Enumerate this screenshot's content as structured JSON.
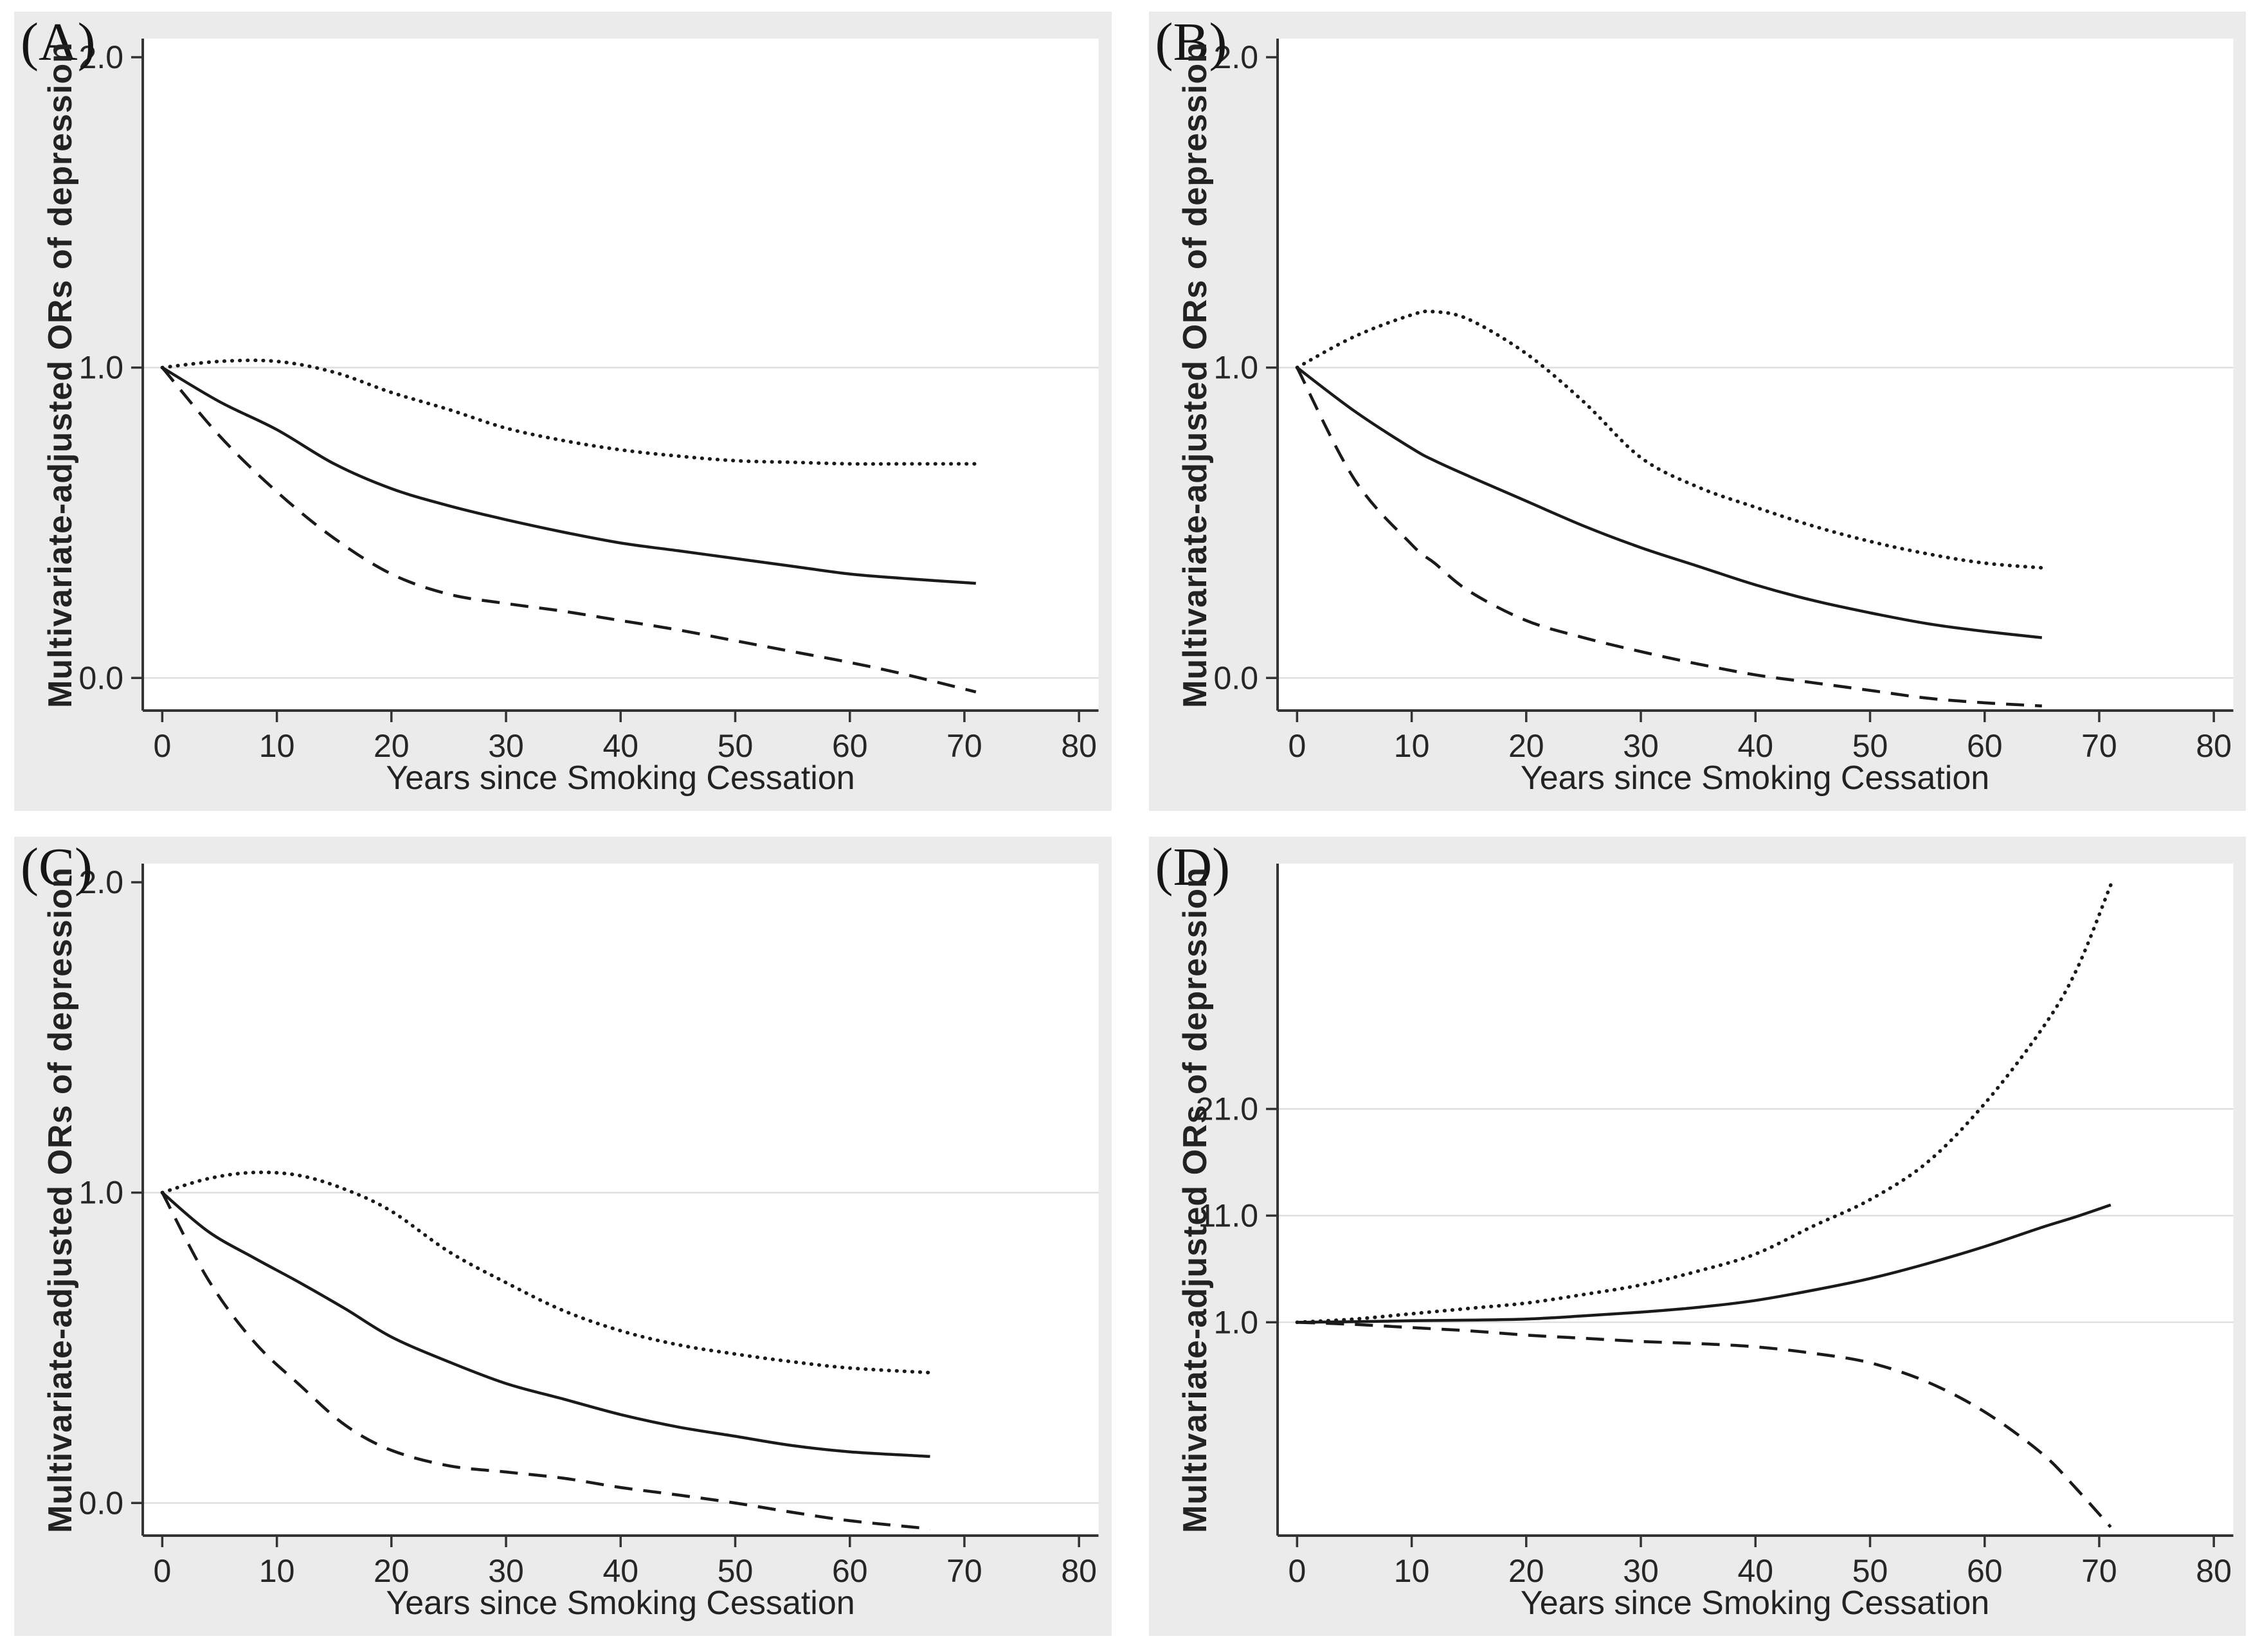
{
  "figure": {
    "xlabel": "Years since Smoking Cessation",
    "ylabel": "Multivariate-adjusted ORs of depression"
  },
  "colors": {
    "panel_background": "#ebebeb",
    "plot_background": "#ffffff",
    "gridline": "#dcdcdc",
    "axis": "#333333",
    "line": "#1a1a1a",
    "text": "#262626"
  },
  "chart_data": [
    {
      "id": "A",
      "label": "(A)",
      "type": "line",
      "xlim": [
        -1.7,
        81.7
      ],
      "ylim": [
        -0.105,
        2.06
      ],
      "xticks": [
        0,
        10,
        20,
        30,
        40,
        50,
        60,
        70,
        80
      ],
      "yticks": [
        {
          "value": 0.0,
          "label": "0.0"
        },
        {
          "value": 1.0,
          "label": "1.0"
        },
        {
          "value": 2.0,
          "label": "2.0"
        }
      ],
      "gridlines": [
        0.0,
        1.0
      ],
      "legend": "none",
      "series": [
        {
          "name": "upper-95ci",
          "style": "dotted",
          "x": [
            0,
            5,
            10,
            15,
            20,
            25,
            30,
            35,
            40,
            45,
            50,
            55,
            60,
            65,
            71
          ],
          "y": [
            1.0,
            1.02,
            1.02,
            0.985,
            0.92,
            0.865,
            0.805,
            0.765,
            0.735,
            0.715,
            0.7,
            0.695,
            0.69,
            0.69,
            0.69
          ]
        },
        {
          "name": "or-point-estimate",
          "style": "solid",
          "x": [
            0,
            5,
            10,
            15,
            20,
            25,
            30,
            35,
            40,
            45,
            50,
            55,
            60,
            65,
            71
          ],
          "y": [
            1.0,
            0.89,
            0.8,
            0.69,
            0.61,
            0.555,
            0.51,
            0.47,
            0.435,
            0.41,
            0.385,
            0.36,
            0.335,
            0.32,
            0.305
          ]
        },
        {
          "name": "lower-95ci",
          "style": "dashed",
          "x": [
            0,
            5,
            10,
            15,
            20,
            25,
            30,
            35,
            40,
            45,
            50,
            55,
            60,
            65,
            71
          ],
          "y": [
            1.0,
            0.78,
            0.6,
            0.45,
            0.335,
            0.27,
            0.24,
            0.215,
            0.185,
            0.155,
            0.12,
            0.085,
            0.05,
            0.01,
            -0.045
          ]
        }
      ]
    },
    {
      "id": "B",
      "label": "(B)",
      "type": "line",
      "xlim": [
        -1.7,
        81.7
      ],
      "ylim": [
        -0.105,
        2.06
      ],
      "xticks": [
        0,
        10,
        20,
        30,
        40,
        50,
        60,
        70,
        80
      ],
      "yticks": [
        {
          "value": 0.0,
          "label": "0.0"
        },
        {
          "value": 1.0,
          "label": "1.0"
        },
        {
          "value": 2.0,
          "label": "2.0"
        }
      ],
      "gridlines": [
        0.0,
        1.0
      ],
      "legend": "none",
      "series": [
        {
          "name": "upper-95ci",
          "style": "dotted",
          "x": [
            0,
            5,
            10,
            12,
            15,
            20,
            25,
            30,
            35,
            40,
            45,
            50,
            55,
            60,
            65
          ],
          "y": [
            1.0,
            1.1,
            1.17,
            1.18,
            1.155,
            1.045,
            0.89,
            0.71,
            0.615,
            0.55,
            0.49,
            0.44,
            0.4,
            0.37,
            0.355
          ]
        },
        {
          "name": "or-point-estimate",
          "style": "solid",
          "x": [
            0,
            5,
            10,
            12,
            15,
            20,
            25,
            30,
            35,
            40,
            45,
            50,
            55,
            60,
            65
          ],
          "y": [
            1.0,
            0.86,
            0.74,
            0.7,
            0.65,
            0.57,
            0.49,
            0.42,
            0.36,
            0.3,
            0.25,
            0.21,
            0.175,
            0.15,
            0.13
          ]
        },
        {
          "name": "lower-95ci",
          "style": "dashed",
          "x": [
            0,
            5,
            10,
            12,
            15,
            20,
            25,
            30,
            35,
            40,
            45,
            50,
            55,
            60,
            65
          ],
          "y": [
            1.0,
            0.64,
            0.43,
            0.37,
            0.28,
            0.185,
            0.13,
            0.085,
            0.045,
            0.01,
            -0.015,
            -0.04,
            -0.065,
            -0.08,
            -0.09
          ]
        }
      ]
    },
    {
      "id": "C",
      "label": "(C)",
      "type": "line",
      "xlim": [
        -1.7,
        81.7
      ],
      "ylim": [
        -0.105,
        2.06
      ],
      "xticks": [
        0,
        10,
        20,
        30,
        40,
        50,
        60,
        70,
        80
      ],
      "yticks": [
        {
          "value": 0.0,
          "label": "0.0"
        },
        {
          "value": 1.0,
          "label": "1.0"
        },
        {
          "value": 2.0,
          "label": "2.0"
        }
      ],
      "gridlines": [
        0.0,
        1.0
      ],
      "legend": "none",
      "series": [
        {
          "name": "upper-95ci",
          "style": "dotted",
          "x": [
            0,
            4,
            8,
            12,
            16,
            20,
            25,
            30,
            35,
            40,
            45,
            50,
            55,
            60,
            67
          ],
          "y": [
            1.0,
            1.045,
            1.065,
            1.055,
            1.01,
            0.94,
            0.81,
            0.71,
            0.62,
            0.555,
            0.51,
            0.48,
            0.455,
            0.435,
            0.42
          ]
        },
        {
          "name": "or-point-estimate",
          "style": "solid",
          "x": [
            0,
            4,
            8,
            12,
            16,
            20,
            25,
            30,
            35,
            40,
            45,
            50,
            55,
            60,
            67
          ],
          "y": [
            1.0,
            0.875,
            0.79,
            0.71,
            0.625,
            0.535,
            0.455,
            0.385,
            0.335,
            0.285,
            0.245,
            0.215,
            0.185,
            0.165,
            0.15
          ]
        },
        {
          "name": "lower-95ci",
          "style": "dashed",
          "x": [
            0,
            4,
            8,
            12,
            16,
            20,
            25,
            30,
            35,
            40,
            45,
            50,
            55,
            60,
            67
          ],
          "y": [
            1.0,
            0.72,
            0.52,
            0.38,
            0.25,
            0.17,
            0.12,
            0.1,
            0.08,
            0.05,
            0.026,
            0.0,
            -0.03,
            -0.057,
            -0.083
          ]
        }
      ]
    },
    {
      "id": "D",
      "label": "(D)",
      "type": "line",
      "xlim": [
        -1.7,
        81.7
      ],
      "ylim": [
        -19,
        44
      ],
      "xticks": [
        0,
        10,
        20,
        30,
        40,
        50,
        60,
        70,
        80
      ],
      "yticks": [
        {
          "value": 1.0,
          "label": "1.0"
        },
        {
          "value": 11.0,
          "label": "11.0"
        },
        {
          "value": 21.0,
          "label": "21.0"
        }
      ],
      "gridlines": [
        1.0,
        11.0,
        21.0
      ],
      "legend": "none",
      "series": [
        {
          "name": "upper-95ci",
          "style": "dotted",
          "x": [
            0,
            5,
            10,
            15,
            20,
            25,
            30,
            35,
            40,
            45,
            50,
            55,
            60,
            65,
            68,
            71
          ],
          "y": [
            1.0,
            1.3,
            1.8,
            2.3,
            2.8,
            3.6,
            4.5,
            5.8,
            7.4,
            10.0,
            12.5,
            16.0,
            21.5,
            28.5,
            34.0,
            42.0
          ]
        },
        {
          "name": "or-point-estimate",
          "style": "solid",
          "x": [
            0,
            5,
            10,
            15,
            20,
            25,
            30,
            35,
            40,
            45,
            50,
            55,
            60,
            65,
            68,
            71
          ],
          "y": [
            1.0,
            1.05,
            1.15,
            1.2,
            1.3,
            1.6,
            1.95,
            2.4,
            3.05,
            4.0,
            5.1,
            6.5,
            8.1,
            9.9,
            10.9,
            12.0
          ]
        },
        {
          "name": "lower-95ci",
          "style": "dashed",
          "x": [
            0,
            5,
            10,
            15,
            20,
            25,
            30,
            35,
            40,
            45,
            50,
            55,
            60,
            65,
            68,
            71
          ],
          "y": [
            1.0,
            0.8,
            0.5,
            0.2,
            -0.2,
            -0.5,
            -0.8,
            -1.0,
            -1.3,
            -1.9,
            -2.8,
            -4.6,
            -7.4,
            -11.3,
            -14.6,
            -18.2
          ]
        }
      ]
    }
  ]
}
